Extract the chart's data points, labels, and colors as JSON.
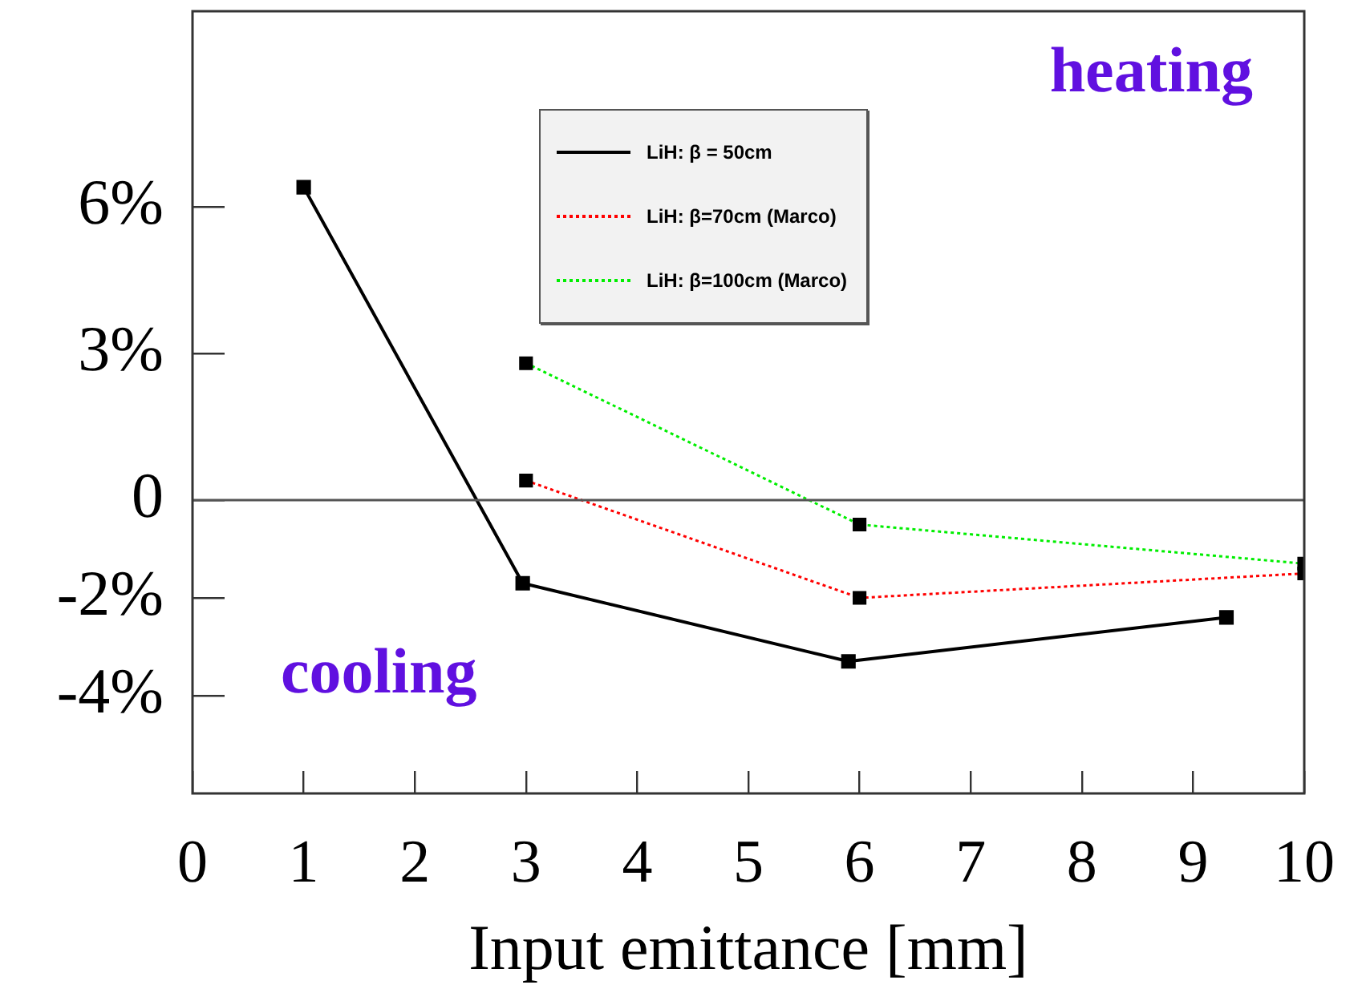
{
  "chart_data": {
    "type": "line",
    "xlabel": "Input emittance [mm]",
    "xlim": [
      0,
      10
    ],
    "xticks": [
      0,
      1,
      2,
      3,
      4,
      5,
      6,
      7,
      8,
      9,
      10
    ],
    "ylim": [
      -6,
      10
    ],
    "yticks": [
      {
        "value": -4,
        "label": "-4%"
      },
      {
        "value": -2,
        "label": "-2%"
      },
      0,
      {
        "value": 3,
        "label": "3%"
      },
      {
        "value": 6,
        "label": "6%"
      }
    ],
    "series": [
      {
        "name": "LiH: β = 50cm",
        "color": "#000000",
        "line_style": "solid",
        "x": [
          1.0,
          2.97,
          5.9,
          9.3
        ],
        "values": [
          6.4,
          -1.7,
          -3.3,
          -2.4
        ]
      },
      {
        "name": "LiH: β=70cm (Marco)",
        "color": "#ff0000",
        "line_style": "dotted",
        "x": [
          3.0,
          6.0,
          10.0
        ],
        "values": [
          0.4,
          -2.0,
          -1.5
        ]
      },
      {
        "name": "LiH: β=100cm (Marco)",
        "color": "#00ee00",
        "line_style": "dotted",
        "x": [
          3.0,
          6.0,
          10.0
        ],
        "values": [
          2.8,
          -0.5,
          -1.3
        ]
      }
    ],
    "marker": "square",
    "grid": false,
    "legend": "top",
    "ref_lines": [
      {
        "axis": "y",
        "value": 0,
        "color": "#555555"
      }
    ],
    "annotations": [
      "heating",
      "cooling"
    ]
  }
}
